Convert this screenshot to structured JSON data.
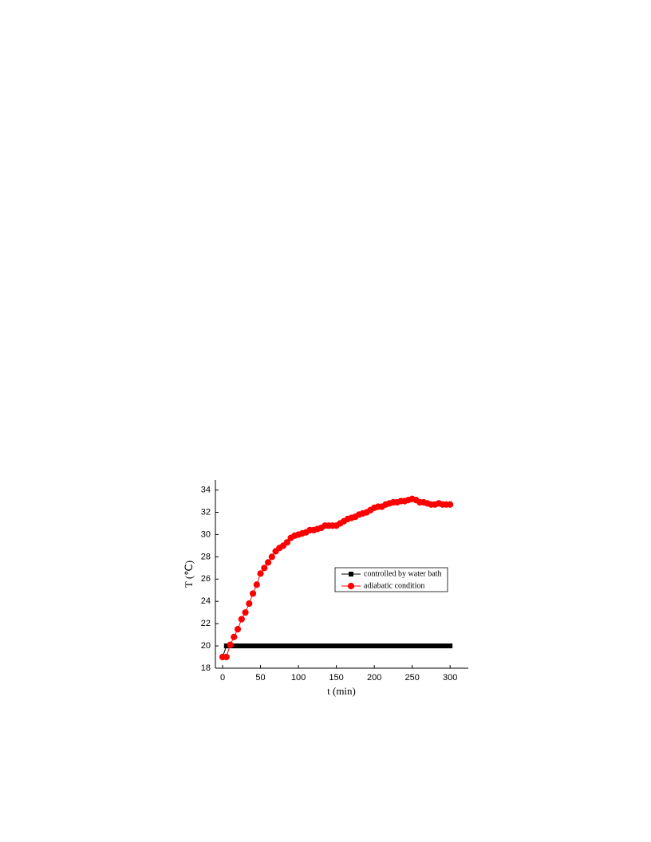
{
  "chart_data": {
    "type": "line",
    "xlabel": "t (min)",
    "ylabel": "T (℃)",
    "x": [
      0,
      5,
      10,
      15,
      20,
      25,
      30,
      35,
      40,
      45,
      50,
      55,
      60,
      65,
      70,
      75,
      80,
      85,
      90,
      95,
      100,
      105,
      110,
      115,
      120,
      125,
      130,
      135,
      140,
      145,
      150,
      155,
      160,
      165,
      170,
      175,
      180,
      185,
      190,
      195,
      200,
      205,
      210,
      215,
      220,
      225,
      230,
      235,
      240,
      245,
      250,
      255,
      260,
      265,
      270,
      275,
      280,
      285,
      290,
      295,
      300
    ],
    "series": [
      {
        "name": "controlled by water bath",
        "color": "#000000",
        "marker": "square",
        "values": [
          19,
          20,
          20,
          20,
          20,
          20,
          20,
          20,
          20,
          20,
          20,
          20,
          20,
          20,
          20,
          20,
          20,
          20,
          20,
          20,
          20,
          20,
          20,
          20,
          20,
          20,
          20,
          20,
          20,
          20,
          20,
          20,
          20,
          20,
          20,
          20,
          20,
          20,
          20,
          20,
          20,
          20,
          20,
          20,
          20,
          20,
          20,
          20,
          20,
          20,
          20,
          20,
          20,
          20,
          20,
          20,
          20,
          20,
          20,
          20,
          20
        ]
      },
      {
        "name": "adiabatic condition",
        "color": "#ff0000",
        "marker": "circle",
        "values": [
          19,
          19,
          20.1,
          20.8,
          21.5,
          22.4,
          23,
          23.8,
          24.7,
          25.5,
          26.5,
          27,
          27.5,
          28,
          28.5,
          28.8,
          29,
          29.3,
          29.7,
          29.9,
          30,
          30.1,
          30.2,
          30.4,
          30.4,
          30.5,
          30.6,
          30.8,
          30.8,
          30.8,
          30.8,
          31,
          31.2,
          31.4,
          31.5,
          31.6,
          31.8,
          31.9,
          32,
          32.2,
          32.4,
          32.5,
          32.5,
          32.7,
          32.8,
          32.9,
          32.9,
          33,
          33,
          33.1,
          33.2,
          33.1,
          32.9,
          32.9,
          32.8,
          32.7,
          32.7,
          32.8,
          32.7,
          32.7,
          32.7
        ]
      }
    ],
    "xlim": [
      -9.5,
      324
    ],
    "ylim": [
      18,
      34.9
    ],
    "xticks": [
      0,
      50,
      100,
      150,
      200,
      250,
      300
    ],
    "yticks": [
      18,
      20,
      22,
      24,
      26,
      28,
      30,
      32,
      34
    ],
    "grid": false,
    "legend": "center-right"
  }
}
